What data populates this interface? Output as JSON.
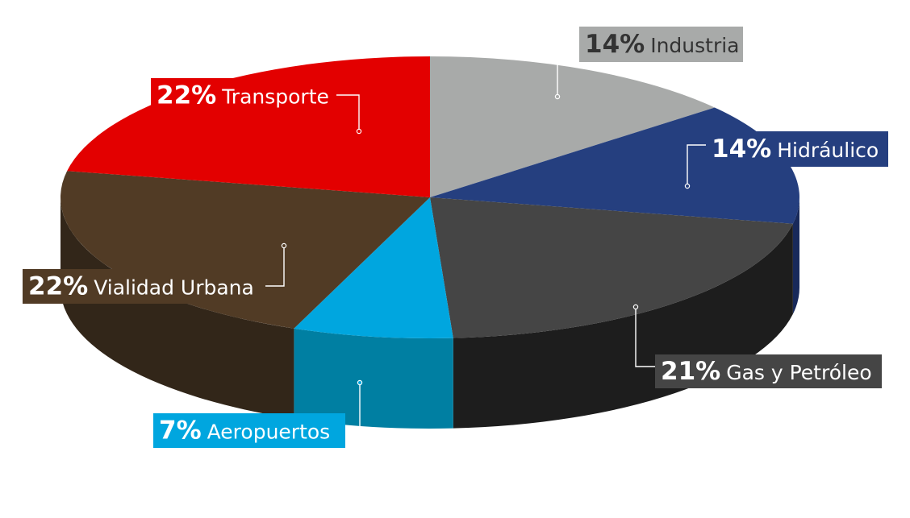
{
  "chart_data": {
    "type": "pie",
    "style": "3d",
    "slices": [
      {
        "key": "industria",
        "pct": "14%",
        "label": "Industria",
        "value": 14,
        "color": "#a8aaa9",
        "side_color": "#7c7e7d",
        "label_bg": "#a8aaa9",
        "pct_color": "#333333",
        "text_color": "#333333"
      },
      {
        "key": "hidraulico",
        "pct": "14%",
        "label": "Hidráulico",
        "value": 14,
        "color": "#253f7f",
        "side_color": "#18295a",
        "label_bg": "#253f7f",
        "pct_color": "#ffffff",
        "text_color": "#ffffff"
      },
      {
        "key": "gas",
        "pct": "21%",
        "label": "Gas y Petróleo",
        "value": 21,
        "color": "#454545",
        "side_color": "#1d1d1d",
        "label_bg": "#454545",
        "pct_color": "#ffffff",
        "text_color": "#ffffff"
      },
      {
        "key": "aero",
        "pct": "7%",
        "label": "Aeropuertos",
        "value": 7,
        "color": "#00a6df",
        "side_color": "#007fa2",
        "label_bg": "#00a6df",
        "pct_color": "#ffffff",
        "text_color": "#ffffff"
      },
      {
        "key": "vialidad",
        "pct": "22%",
        "label": "Vialidad Urbana",
        "value": 22,
        "color": "#513b25",
        "side_color": "#322619",
        "label_bg": "#513b25",
        "pct_color": "#ffffff",
        "text_color": "#ffffff"
      },
      {
        "key": "transporte",
        "pct": "22%",
        "label": "Transporte",
        "value": 22,
        "color": "#e30000",
        "side_color": "#a50000",
        "label_bg": "#e30000",
        "pct_color": "#ffffff",
        "text_color": "#ffffff"
      }
    ],
    "legend": "none",
    "grid": false
  }
}
